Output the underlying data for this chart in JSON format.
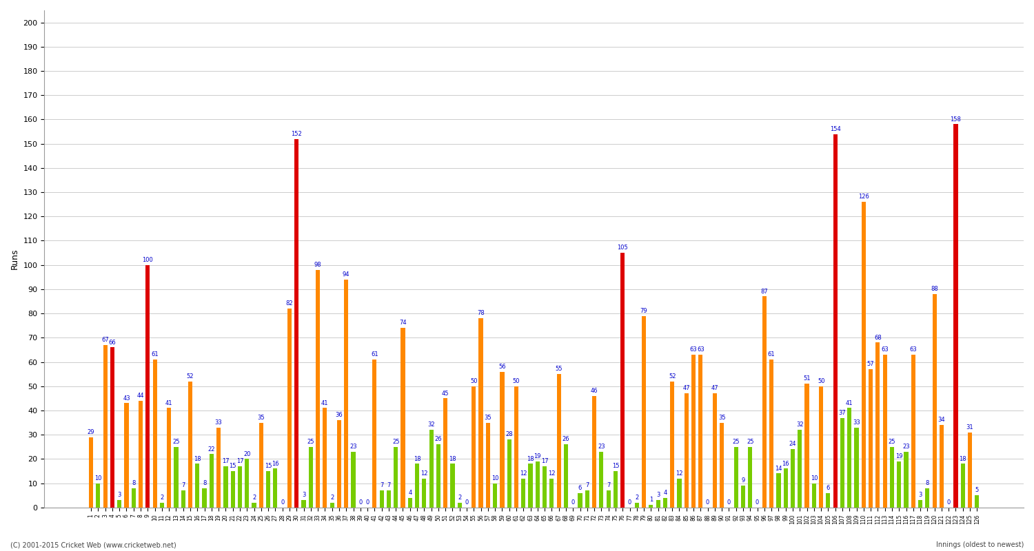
{
  "ylabel": "Runs",
  "footer": "(C) 2001-2015 Cricket Web (www.cricketweb.net)",
  "footer_right": "Innings (oldest to newest)",
  "background_color": "#ffffff",
  "grid_color": "#cccccc",
  "ylim": [
    0,
    205
  ],
  "yticks": [
    0,
    10,
    20,
    30,
    40,
    50,
    60,
    70,
    80,
    90,
    100,
    110,
    120,
    130,
    140,
    150,
    160,
    170,
    180,
    190,
    200
  ],
  "innings_data": [
    {
      "inning": 1,
      "runs": 29,
      "color": "orange"
    },
    {
      "inning": 2,
      "runs": 10,
      "color": "green"
    },
    {
      "inning": 3,
      "runs": 67,
      "color": "orange"
    },
    {
      "inning": 4,
      "runs": 66,
      "color": "red"
    },
    {
      "inning": 5,
      "runs": 3,
      "color": "green"
    },
    {
      "inning": 6,
      "runs": 43,
      "color": "orange"
    },
    {
      "inning": 7,
      "runs": 8,
      "color": "green"
    },
    {
      "inning": 8,
      "runs": 44,
      "color": "orange"
    },
    {
      "inning": 9,
      "runs": 100,
      "color": "red"
    },
    {
      "inning": 10,
      "runs": 61,
      "color": "orange"
    },
    {
      "inning": 11,
      "runs": 2,
      "color": "green"
    },
    {
      "inning": 12,
      "runs": 41,
      "color": "orange"
    },
    {
      "inning": 13,
      "runs": 25,
      "color": "green"
    },
    {
      "inning": 14,
      "runs": 7,
      "color": "green"
    },
    {
      "inning": 15,
      "runs": 52,
      "color": "orange"
    },
    {
      "inning": 16,
      "runs": 18,
      "color": "green"
    },
    {
      "inning": 17,
      "runs": 8,
      "color": "green"
    },
    {
      "inning": 18,
      "runs": 22,
      "color": "green"
    },
    {
      "inning": 19,
      "runs": 33,
      "color": "orange"
    },
    {
      "inning": 20,
      "runs": 17,
      "color": "green"
    },
    {
      "inning": 21,
      "runs": 15,
      "color": "green"
    },
    {
      "inning": 22,
      "runs": 17,
      "color": "green"
    },
    {
      "inning": 23,
      "runs": 20,
      "color": "green"
    },
    {
      "inning": 24,
      "runs": 2,
      "color": "green"
    },
    {
      "inning": 25,
      "runs": 35,
      "color": "orange"
    },
    {
      "inning": 26,
      "runs": 15,
      "color": "green"
    },
    {
      "inning": 27,
      "runs": 16,
      "color": "green"
    },
    {
      "inning": 28,
      "runs": 0,
      "color": "green"
    },
    {
      "inning": 29,
      "runs": 82,
      "color": "orange"
    },
    {
      "inning": 30,
      "runs": 152,
      "color": "red"
    },
    {
      "inning": 31,
      "runs": 3,
      "color": "green"
    },
    {
      "inning": 32,
      "runs": 25,
      "color": "green"
    },
    {
      "inning": 33,
      "runs": 98,
      "color": "orange"
    },
    {
      "inning": 34,
      "runs": 41,
      "color": "orange"
    },
    {
      "inning": 35,
      "runs": 2,
      "color": "green"
    },
    {
      "inning": 36,
      "runs": 36,
      "color": "orange"
    },
    {
      "inning": 37,
      "runs": 94,
      "color": "orange"
    },
    {
      "inning": 38,
      "runs": 23,
      "color": "green"
    },
    {
      "inning": 39,
      "runs": 0,
      "color": "green"
    },
    {
      "inning": 40,
      "runs": 0,
      "color": "green"
    },
    {
      "inning": 41,
      "runs": 61,
      "color": "orange"
    },
    {
      "inning": 42,
      "runs": 7,
      "color": "green"
    },
    {
      "inning": 43,
      "runs": 7,
      "color": "green"
    },
    {
      "inning": 44,
      "runs": 25,
      "color": "green"
    },
    {
      "inning": 45,
      "runs": 74,
      "color": "orange"
    },
    {
      "inning": 46,
      "runs": 4,
      "color": "green"
    },
    {
      "inning": 47,
      "runs": 18,
      "color": "green"
    },
    {
      "inning": 48,
      "runs": 12,
      "color": "green"
    },
    {
      "inning": 49,
      "runs": 32,
      "color": "green"
    },
    {
      "inning": 50,
      "runs": 26,
      "color": "green"
    },
    {
      "inning": 51,
      "runs": 45,
      "color": "orange"
    },
    {
      "inning": 52,
      "runs": 18,
      "color": "green"
    },
    {
      "inning": 53,
      "runs": 2,
      "color": "green"
    },
    {
      "inning": 54,
      "runs": 0,
      "color": "green"
    },
    {
      "inning": 55,
      "runs": 50,
      "color": "orange"
    },
    {
      "inning": 56,
      "runs": 78,
      "color": "orange"
    },
    {
      "inning": 57,
      "runs": 35,
      "color": "orange"
    },
    {
      "inning": 58,
      "runs": 10,
      "color": "green"
    },
    {
      "inning": 59,
      "runs": 56,
      "color": "orange"
    },
    {
      "inning": 60,
      "runs": 28,
      "color": "green"
    },
    {
      "inning": 61,
      "runs": 50,
      "color": "orange"
    },
    {
      "inning": 62,
      "runs": 12,
      "color": "green"
    },
    {
      "inning": 63,
      "runs": 18,
      "color": "green"
    },
    {
      "inning": 64,
      "runs": 19,
      "color": "green"
    },
    {
      "inning": 65,
      "runs": 17,
      "color": "green"
    },
    {
      "inning": 66,
      "runs": 12,
      "color": "green"
    },
    {
      "inning": 67,
      "runs": 55,
      "color": "orange"
    },
    {
      "inning": 68,
      "runs": 26,
      "color": "green"
    },
    {
      "inning": 69,
      "runs": 0,
      "color": "green"
    },
    {
      "inning": 70,
      "runs": 6,
      "color": "green"
    },
    {
      "inning": 71,
      "runs": 7,
      "color": "green"
    },
    {
      "inning": 72,
      "runs": 46,
      "color": "orange"
    },
    {
      "inning": 73,
      "runs": 23,
      "color": "green"
    },
    {
      "inning": 74,
      "runs": 7,
      "color": "green"
    },
    {
      "inning": 75,
      "runs": 15,
      "color": "green"
    },
    {
      "inning": 76,
      "runs": 105,
      "color": "red"
    },
    {
      "inning": 77,
      "runs": 0,
      "color": "green"
    },
    {
      "inning": 78,
      "runs": 2,
      "color": "green"
    },
    {
      "inning": 79,
      "runs": 79,
      "color": "orange"
    },
    {
      "inning": 80,
      "runs": 1,
      "color": "green"
    },
    {
      "inning": 81,
      "runs": 3,
      "color": "green"
    },
    {
      "inning": 82,
      "runs": 4,
      "color": "green"
    },
    {
      "inning": 83,
      "runs": 52,
      "color": "orange"
    },
    {
      "inning": 84,
      "runs": 12,
      "color": "green"
    },
    {
      "inning": 85,
      "runs": 47,
      "color": "orange"
    },
    {
      "inning": 86,
      "runs": 63,
      "color": "orange"
    },
    {
      "inning": 87,
      "runs": 63,
      "color": "orange"
    },
    {
      "inning": 88,
      "runs": 0,
      "color": "green"
    },
    {
      "inning": 89,
      "runs": 47,
      "color": "orange"
    },
    {
      "inning": 90,
      "runs": 35,
      "color": "orange"
    },
    {
      "inning": 91,
      "runs": 0,
      "color": "green"
    },
    {
      "inning": 92,
      "runs": 25,
      "color": "green"
    },
    {
      "inning": 93,
      "runs": 9,
      "color": "green"
    },
    {
      "inning": 94,
      "runs": 25,
      "color": "green"
    },
    {
      "inning": 95,
      "runs": 0,
      "color": "green"
    },
    {
      "inning": 96,
      "runs": 87,
      "color": "orange"
    },
    {
      "inning": 97,
      "runs": 61,
      "color": "orange"
    },
    {
      "inning": 98,
      "runs": 14,
      "color": "green"
    },
    {
      "inning": 99,
      "runs": 16,
      "color": "green"
    },
    {
      "inning": 100,
      "runs": 24,
      "color": "green"
    },
    {
      "inning": 101,
      "runs": 32,
      "color": "green"
    },
    {
      "inning": 102,
      "runs": 51,
      "color": "orange"
    },
    {
      "inning": 103,
      "runs": 10,
      "color": "green"
    },
    {
      "inning": 104,
      "runs": 50,
      "color": "orange"
    },
    {
      "inning": 105,
      "runs": 6,
      "color": "green"
    },
    {
      "inning": 106,
      "runs": 154,
      "color": "red"
    },
    {
      "inning": 107,
      "runs": 37,
      "color": "green"
    },
    {
      "inning": 108,
      "runs": 41,
      "color": "green"
    },
    {
      "inning": 109,
      "runs": 33,
      "color": "green"
    },
    {
      "inning": 110,
      "runs": 126,
      "color": "orange"
    },
    {
      "inning": 111,
      "runs": 57,
      "color": "orange"
    },
    {
      "inning": 112,
      "runs": 68,
      "color": "orange"
    },
    {
      "inning": 113,
      "runs": 63,
      "color": "orange"
    },
    {
      "inning": 114,
      "runs": 25,
      "color": "green"
    },
    {
      "inning": 115,
      "runs": 19,
      "color": "green"
    },
    {
      "inning": 116,
      "runs": 23,
      "color": "green"
    },
    {
      "inning": 117,
      "runs": 63,
      "color": "orange"
    },
    {
      "inning": 118,
      "runs": 3,
      "color": "green"
    },
    {
      "inning": 119,
      "runs": 8,
      "color": "green"
    },
    {
      "inning": 120,
      "runs": 88,
      "color": "orange"
    },
    {
      "inning": 121,
      "runs": 34,
      "color": "orange"
    },
    {
      "inning": 122,
      "runs": 0,
      "color": "green"
    },
    {
      "inning": 123,
      "runs": 158,
      "color": "red"
    },
    {
      "inning": 124,
      "runs": 18,
      "color": "green"
    },
    {
      "inning": 125,
      "runs": 31,
      "color": "orange"
    },
    {
      "inning": 126,
      "runs": 5,
      "color": "green"
    }
  ],
  "color_red": "#dd0000",
  "color_orange": "#ff8800",
  "color_green": "#77cc00",
  "label_color": "#0000cc",
  "label_fontsize": 6.0,
  "bar_width": 0.6,
  "ylabel_fontsize": 9,
  "ytick_fontsize": 8,
  "xtick_fontsize": 5.5
}
